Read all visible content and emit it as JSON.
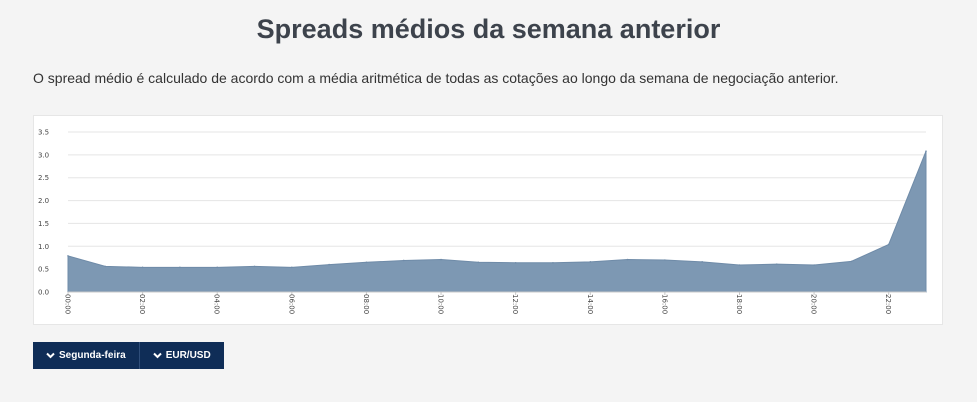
{
  "page": {
    "title": "Spreads médios da semana anterior",
    "description": "O spread médio é calculado de acordo com a média aritmética de todas as cotações ao longo da semana de negociação anterior."
  },
  "controls": {
    "day_label": "Segunda-feira",
    "pair_label": "EUR/USD",
    "icon": "chevron-down-icon"
  },
  "colors": {
    "area_fill": "#7d98b3",
    "button_bg": "#0f2d57"
  },
  "chart_data": {
    "type": "area",
    "title": "",
    "xlabel": "",
    "ylabel": "",
    "ylim": [
      0,
      3.5
    ],
    "y_ticks": [
      "0.0",
      "0.5",
      "1.0",
      "1.5",
      "2.0",
      "2.5",
      "3.0",
      "3.5"
    ],
    "x_ticks": [
      "00:00",
      "02:00",
      "04:00",
      "06:00",
      "08:00",
      "10:00",
      "12:00",
      "14:00",
      "16:00",
      "18:00",
      "20:00",
      "22:00"
    ],
    "grid": true,
    "series": [
      {
        "x": [
          0,
          1,
          2,
          3,
          4,
          5,
          6,
          7,
          8,
          9,
          10,
          11,
          12,
          13,
          14,
          15,
          16,
          17,
          18,
          19,
          20,
          21,
          22,
          23
        ],
        "values": [
          0.79,
          0.56,
          0.54,
          0.54,
          0.54,
          0.56,
          0.54,
          0.6,
          0.65,
          0.69,
          0.71,
          0.65,
          0.64,
          0.64,
          0.66,
          0.71,
          0.7,
          0.66,
          0.59,
          0.61,
          0.59,
          0.67,
          1.04,
          3.08
        ]
      }
    ]
  }
}
